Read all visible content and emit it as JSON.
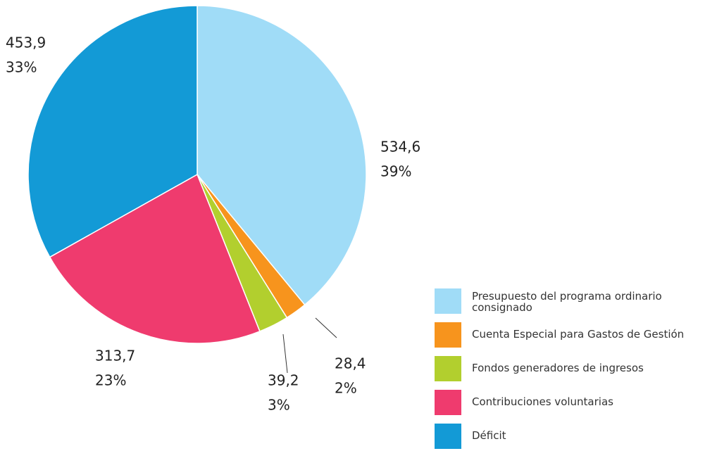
{
  "chart_data": {
    "type": "pie",
    "categories": [
      "Presupuesto del programa ordinario consignado",
      "Cuenta Especial para Gastos de Gestión",
      "Fondos generadores de ingresos",
      "Contribuciones voluntarias",
      "Déficit"
    ],
    "values": [
      534.6,
      28.4,
      39.2,
      313.7,
      453.9
    ],
    "value_labels": [
      "534,6",
      "28,4",
      "39,2",
      "313,7",
      "453,9"
    ],
    "percent_labels": [
      "39%",
      "2%",
      "3%",
      "23%",
      "33%"
    ],
    "colors": [
      "#a0dcf7",
      "#f7941d",
      "#b2cf2e",
      "#ef3b6e",
      "#139ad6"
    ],
    "legend": "bottom-right"
  }
}
